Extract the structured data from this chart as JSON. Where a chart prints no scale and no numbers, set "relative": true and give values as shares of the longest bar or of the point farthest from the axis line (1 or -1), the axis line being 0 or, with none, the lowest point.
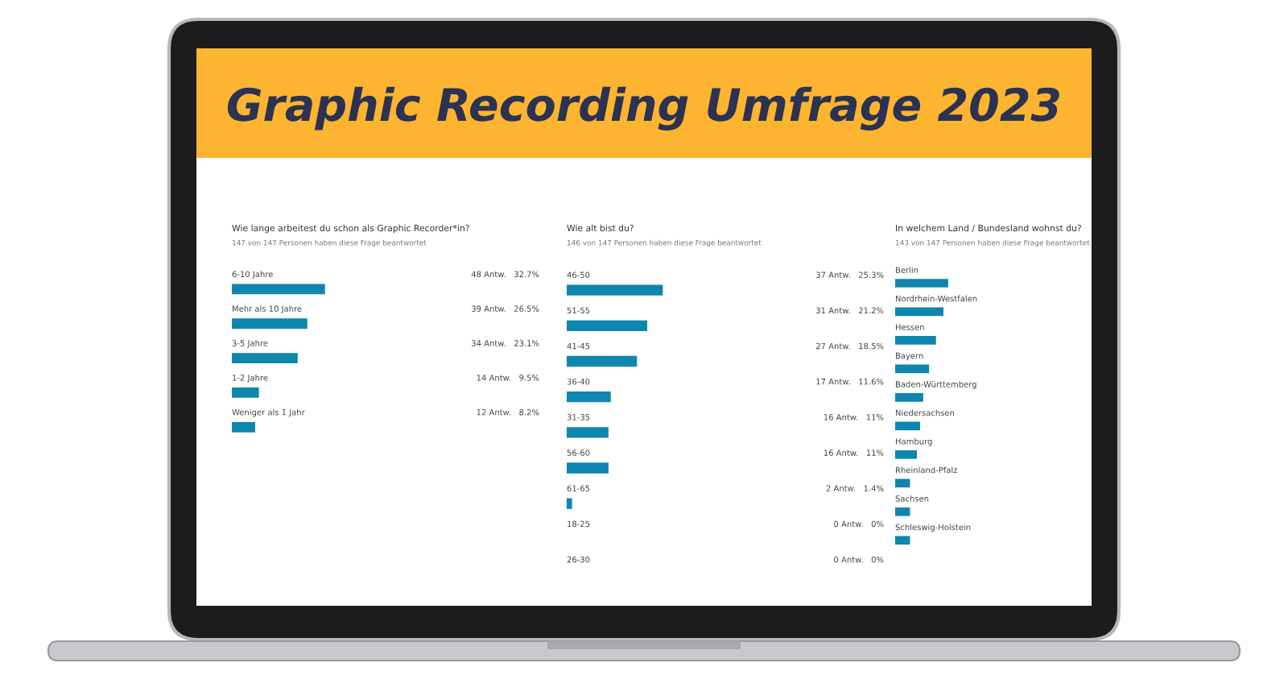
{
  "chart_data": [
    {
      "type": "other",
      "title": "Graphic Recording Umfrage 2023",
      "color": "#fcb431"
    },
    {
      "type": "bar",
      "orientation": "horizontal",
      "title": "Wie lange arbeitest du schon als Graphic Recorder*in?",
      "subtitle": "147 von 147 Personen haben diese Frage beantwortet",
      "categories": [
        "6-10 Jahre",
        "Mehr als 10 Jahre",
        "3-5 Jahre",
        "1-2 Jahre",
        "Weniger als 1 Jahr"
      ],
      "values": [
        32.7,
        26.5,
        23.1,
        9.5,
        8.2
      ],
      "value_labels": [
        "48 Antw.   32.7%",
        "39 Antw.   26.5%",
        "34 Antw.   23.1%",
        "14 Antw.   9.5%",
        "12 Antw.   8.2%"
      ],
      "color": "#0f86ad"
    },
    {
      "type": "bar",
      "orientation": "horizontal",
      "title": "Wie alt bist du?",
      "subtitle": "146 von 147 Personen haben diese Frage beantwortet",
      "categories": [
        "46-50",
        "51-55",
        "41-45",
        "36-40",
        "31-35",
        "56-60",
        "61-65",
        "18-25",
        "26-30"
      ],
      "values": [
        25.3,
        21.2,
        18.5,
        11.6,
        11,
        11,
        1.4,
        0,
        0
      ],
      "value_labels": [
        "37 Antw.   25.3%",
        "31 Antw.   21.2%",
        "27 Antw.   18.5%",
        "17 Antw.   11.6%",
        "16 Antw.   11%",
        "16 Antw.   11%",
        "2 Antw.   1.4%",
        "0 Antw.   0%",
        "0 Antw.   0%"
      ],
      "color": "#0f86ad"
    },
    {
      "type": "bar",
      "orientation": "horizontal",
      "relative": true,
      "title": "In welchem Land / Bundesland wohnst du?",
      "subtitle": "143 von 147 Personen haben diese Frage beantwortet",
      "categories": [
        "Berlin",
        "Nordrhein-Westfalen",
        "Hessen",
        "Bayern",
        "Baden-Württemberg",
        "Niedersachsen",
        "Hamburg",
        "Rheinland-Pfalz",
        "Sachsen",
        "Schleswig-Holstein"
      ],
      "values": [
        1,
        0.91,
        0.77,
        0.64,
        0.53,
        0.47,
        0.41,
        0.28,
        0.28,
        0.28
      ],
      "color": "#0f86ad"
    }
  ]
}
